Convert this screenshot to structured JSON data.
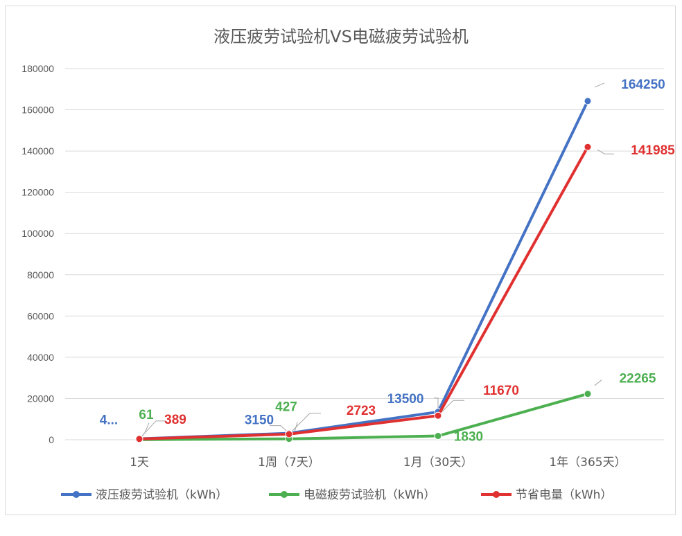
{
  "chart_data": {
    "type": "line",
    "title": "液压疲劳试验机VS电磁疲劳试验机",
    "categories": [
      "1天",
      "1周（7天）",
      "1月（30天）",
      "1年（365天）"
    ],
    "ylim": [
      0,
      180000
    ],
    "yticks": [
      "0",
      "20000",
      "40000",
      "60000",
      "80000",
      "100000",
      "120000",
      "140000",
      "160000",
      "180000"
    ],
    "grid": true,
    "legend_position": "bottom",
    "series": [
      {
        "name": "液压疲劳试验机（kWh）",
        "color": "#4472C4",
        "values": [
          450,
          3150,
          13500,
          164250
        ],
        "labels": [
          "4...",
          "3150",
          "13500",
          "164250"
        ]
      },
      {
        "name": "电磁疲劳试验机（kWh）",
        "color": "#4CAF50",
        "values": [
          61,
          427,
          1830,
          22265
        ],
        "labels": [
          "61",
          "427",
          "1830",
          "22265"
        ]
      },
      {
        "name": "节省电量（kWh）",
        "color": "#E03030",
        "values": [
          389,
          2723,
          11670,
          141985
        ],
        "labels": [
          "389",
          "2723",
          "11670",
          "141985"
        ]
      }
    ]
  }
}
